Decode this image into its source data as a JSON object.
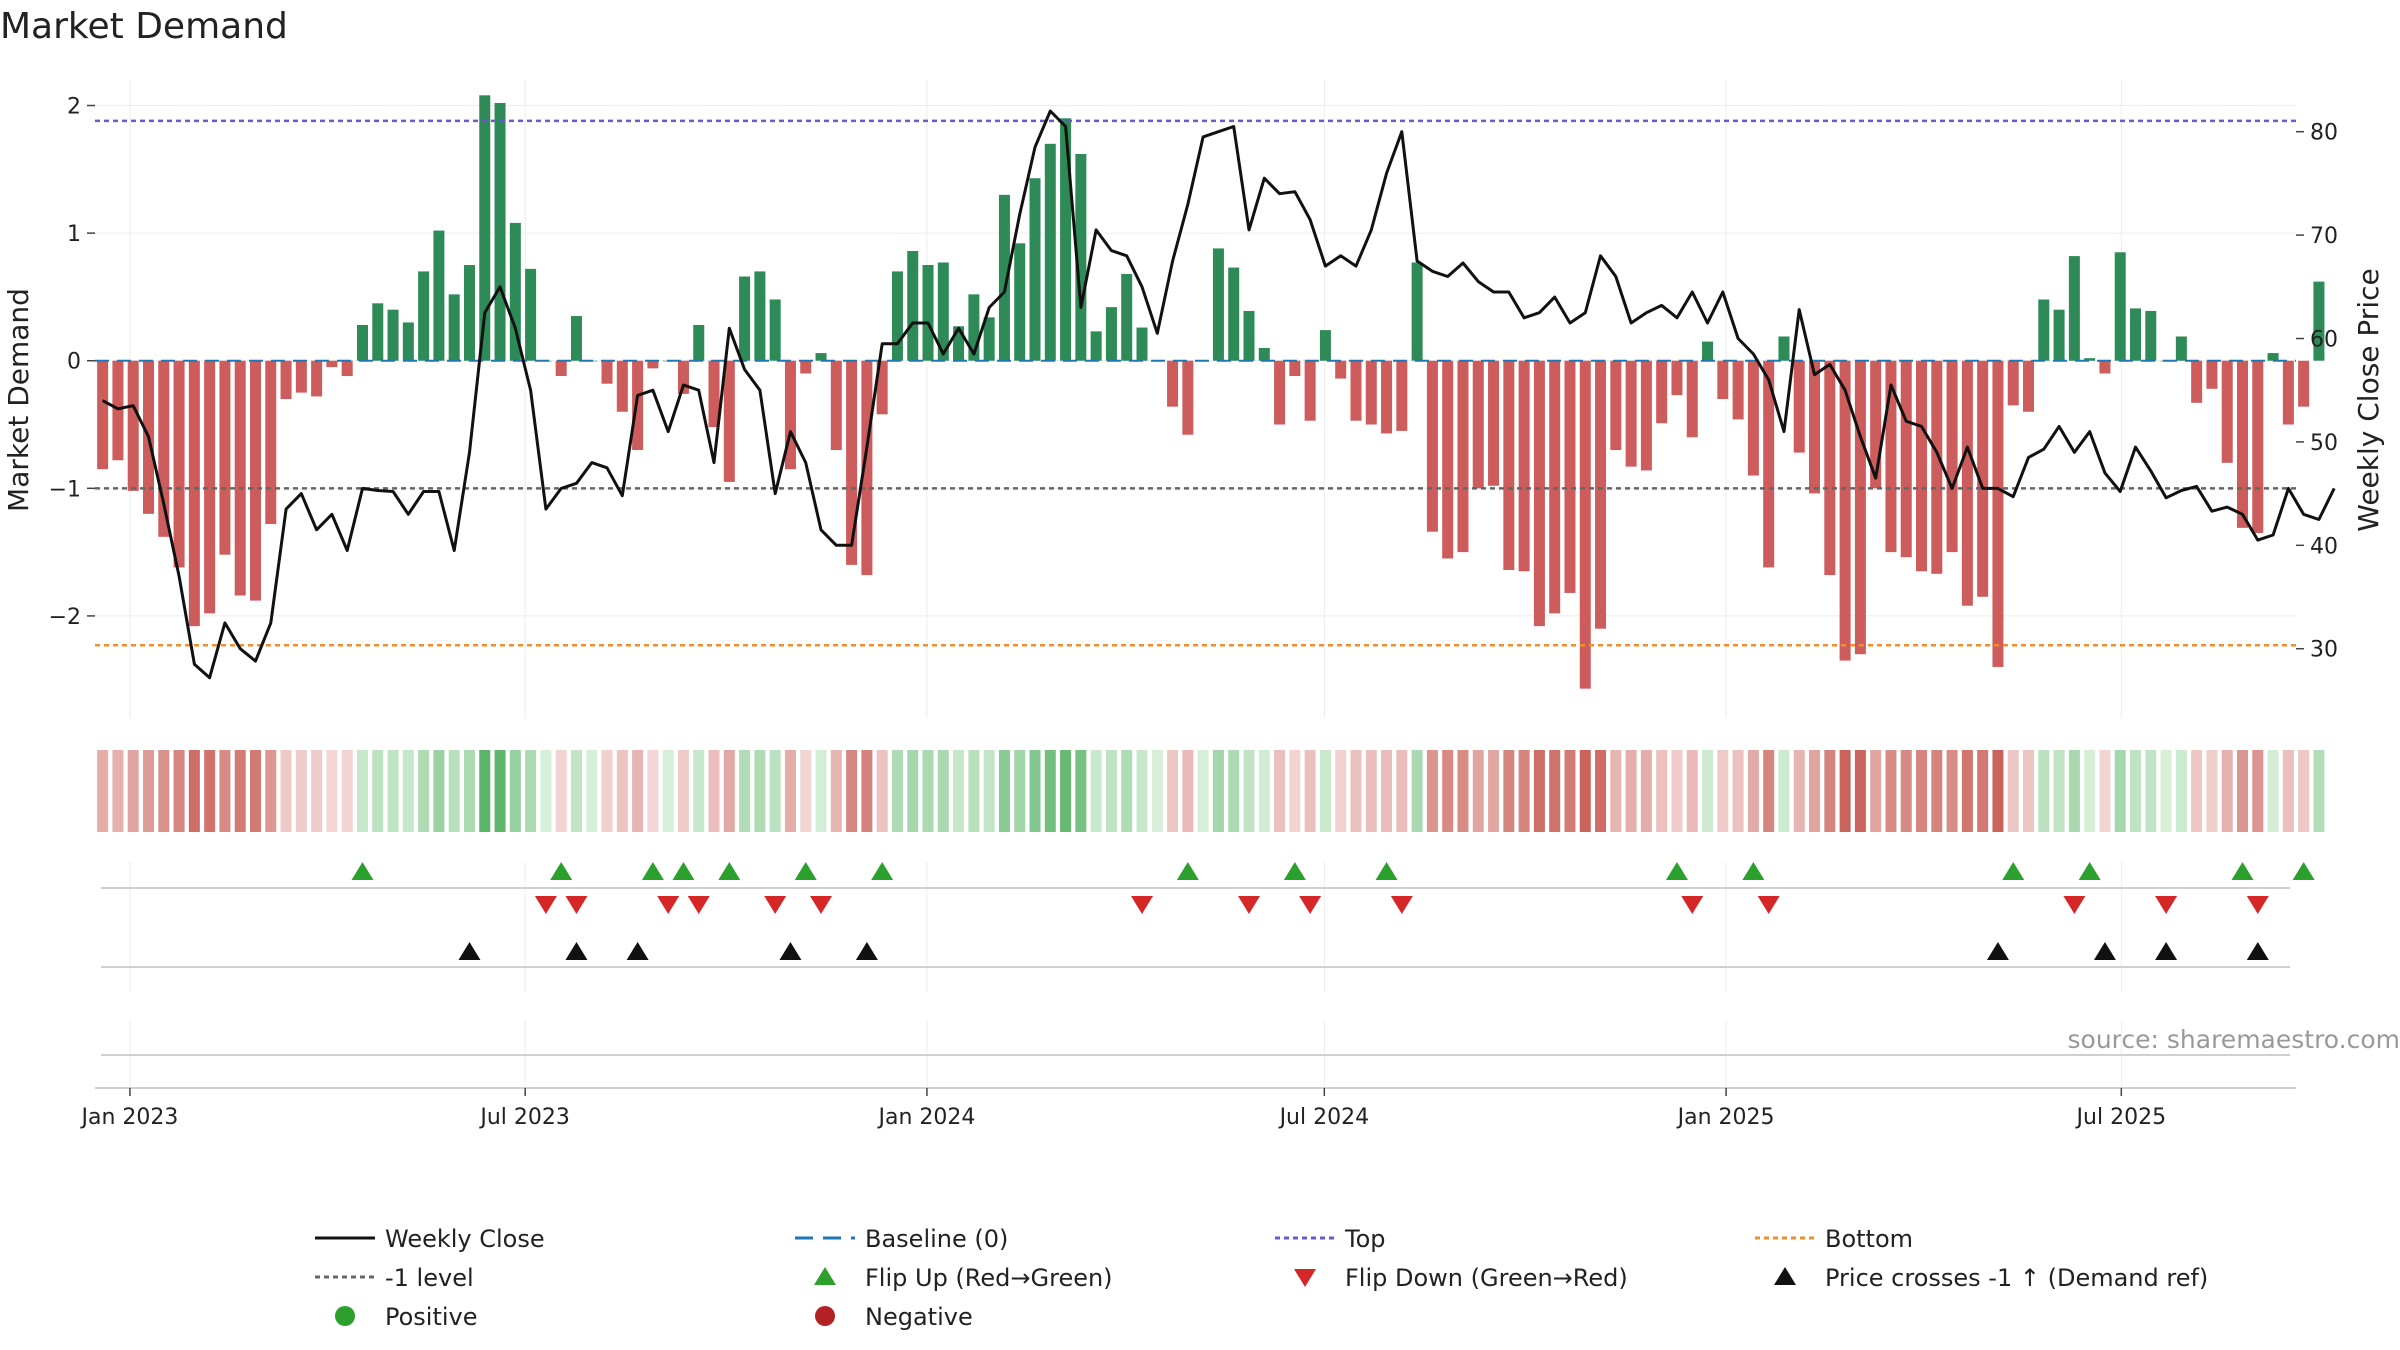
{
  "chart_data": {
    "type": "bar",
    "title": "Market Demand",
    "ylabel": "Market Demand",
    "y2label": "Weekly Close Price",
    "source": "source: sharemaestro.com",
    "ylim": [
      -2.8,
      2.2
    ],
    "y2lim": [
      23.3,
      85.0
    ],
    "yticks": [
      2,
      1,
      0,
      -1,
      -2
    ],
    "ytick_labels": [
      "2",
      "1",
      "0",
      "−1",
      "−2"
    ],
    "y2ticks": [
      80,
      70,
      60,
      50,
      40,
      30
    ],
    "y2tick_labels": [
      "80",
      "70",
      "60",
      "50",
      "40",
      "30"
    ],
    "x_start": "2022-12-16",
    "x_end": "2025-09-19",
    "xticks": [
      {
        "date": "2023-01-01",
        "label": "Jan 2023"
      },
      {
        "date": "2023-07-01",
        "label": "Jul 2023"
      },
      {
        "date": "2024-01-01",
        "label": "Jan 2024"
      },
      {
        "date": "2024-07-01",
        "label": "Jul 2024"
      },
      {
        "date": "2025-01-01",
        "label": "Jan 2025"
      },
      {
        "date": "2025-07-01",
        "label": "Jul 2025"
      }
    ],
    "first_week": "2022-12-16",
    "top_level": 1.88,
    "bottom_level": -2.23,
    "minus_one_level": -1,
    "demand": [
      -0.85,
      -0.78,
      -1.02,
      -1.2,
      -1.38,
      -1.62,
      -2.08,
      -1.98,
      -1.52,
      -1.84,
      -1.88,
      -1.28,
      -0.3,
      -0.25,
      -0.28,
      -0.05,
      -0.12,
      0.28,
      0.45,
      0.4,
      0.3,
      0.7,
      1.02,
      0.52,
      0.75,
      2.08,
      2.02,
      1.08,
      0.72,
      0.0,
      -0.12,
      0.35,
      0.0,
      -0.18,
      -0.4,
      -0.7,
      -0.06,
      0.0,
      -0.26,
      0.28,
      -0.52,
      -0.95,
      0.66,
      0.7,
      0.48,
      -0.85,
      -0.1,
      0.06,
      -0.7,
      -1.6,
      -1.68,
      -0.42,
      0.7,
      0.86,
      0.75,
      0.77,
      0.27,
      0.52,
      0.34,
      1.3,
      0.92,
      1.43,
      1.7,
      1.9,
      1.62,
      0.23,
      0.42,
      0.68,
      0.26,
      0.0,
      -0.36,
      -0.58,
      0.0,
      0.88,
      0.73,
      0.39,
      0.1,
      -0.5,
      -0.12,
      -0.47,
      0.24,
      -0.14,
      -0.47,
      -0.5,
      -0.57,
      -0.55,
      0.77,
      -1.34,
      -1.55,
      -1.5,
      -1.0,
      -0.98,
      -1.64,
      -1.65,
      -2.08,
      -1.98,
      -1.82,
      -2.57,
      -2.1,
      -0.7,
      -0.83,
      -0.86,
      -0.49,
      -0.27,
      -0.6,
      0.15,
      -0.3,
      -0.46,
      -0.9,
      -1.62,
      0.19,
      -0.72,
      -1.04,
      -1.68,
      -2.35,
      -2.3,
      -1.0,
      -1.5,
      -1.54,
      -1.65,
      -1.67,
      -1.5,
      -1.92,
      -1.85,
      -2.4,
      -0.35,
      -0.4,
      0.48,
      0.4,
      0.82,
      0.02,
      -0.1,
      0.85,
      0.41,
      0.39,
      0.0,
      0.19,
      -0.33,
      -0.22,
      -0.8,
      -1.31,
      -1.35,
      0.06,
      -0.5,
      -0.36,
      0.62
    ],
    "close": [
      54,
      53.2,
      53.5,
      50.5,
      44,
      37,
      28.5,
      27.2,
      32.5,
      30,
      28.8,
      32.5,
      43.5,
      45,
      41.5,
      43,
      39.5,
      45.5,
      45.3,
      45.2,
      43,
      45.2,
      45.2,
      39.5,
      49,
      62.5,
      65,
      61,
      55,
      43.5,
      45.5,
      46,
      48,
      47.5,
      44.8,
      54.5,
      55,
      51,
      55.5,
      55,
      48,
      61,
      57,
      55,
      45,
      51,
      48,
      41.5,
      40,
      40,
      49.5,
      59.5,
      59.5,
      61.5,
      61.5,
      58.5,
      61,
      58.5,
      63,
      64.5,
      72,
      78.5,
      82,
      80.5,
      63,
      70.5,
      68.5,
      68,
      65,
      60.5,
      67.5,
      73,
      79.5,
      80,
      80.5,
      70.5,
      75.5,
      74,
      74.2,
      71.5,
      67,
      68,
      67,
      70.5,
      76,
      80,
      67.5,
      66.5,
      66,
      67.3,
      65.5,
      64.5,
      64.5,
      62,
      62.5,
      64,
      61.5,
      62.5,
      68,
      66,
      61.5,
      62.5,
      63.2,
      62,
      64.5,
      61.5,
      64.5,
      60,
      58.5,
      56,
      51,
      62.8,
      56.5,
      57.5,
      55,
      50.5,
      46.5,
      55.5,
      52,
      51.5,
      49,
      45.5,
      49.5,
      45.5,
      45.5,
      44.7,
      48.5,
      49.3,
      51.5,
      49,
      51,
      47,
      45.2,
      49.5,
      47.2,
      44.6,
      45.3,
      45.7,
      43.3,
      43.7,
      43,
      40.5,
      41,
      45.5,
      43,
      42.5,
      45.5
    ],
    "flip_up_weeks": [
      17,
      30,
      36,
      38,
      41,
      46,
      51,
      71,
      78,
      84,
      103,
      108,
      125,
      130,
      140,
      144
    ],
    "flip_down_weeks": [
      29,
      31,
      37,
      39,
      44,
      47,
      68,
      75,
      79,
      85,
      104,
      109,
      129,
      135,
      141
    ],
    "price_cross_weeks": [
      24,
      31,
      35,
      45,
      50,
      124,
      131,
      135,
      141
    ],
    "legend": [
      {
        "label": "Weekly Close",
        "kind": "line",
        "color": "#111111"
      },
      {
        "label": "Baseline (0)",
        "kind": "dash",
        "color": "#1f77b4"
      },
      {
        "label": "Top",
        "kind": "dot",
        "color": "#6a5acd"
      },
      {
        "label": "Bottom",
        "kind": "dot",
        "color": "#f28e2b"
      },
      {
        "label": "-1 level",
        "kind": "dot",
        "color": "#666666"
      },
      {
        "label": "Flip Up (Red→Green)",
        "kind": "tri-up",
        "color": "#2ca02c"
      },
      {
        "label": "Flip Down (Green→Red)",
        "kind": "tri-down",
        "color": "#d62728"
      },
      {
        "label": "Price crosses -1 ↑ (Demand ref)",
        "kind": "tri-up",
        "color": "#111111"
      },
      {
        "label": "Positive",
        "kind": "circle",
        "color": "#2ca02c"
      },
      {
        "label": "Negative",
        "kind": "circle",
        "color": "#b22222"
      }
    ],
    "colors": {
      "positive_bar": "#2e8b57",
      "negative_bar": "#cd5c5c",
      "line": "#111111",
      "baseline": "#1f77b4",
      "top": "#6a5acd",
      "bottom": "#f28e2b",
      "minus_one": "#666666",
      "flip_up": "#2ca02c",
      "flip_down": "#d62728",
      "cross": "#111111"
    }
  }
}
